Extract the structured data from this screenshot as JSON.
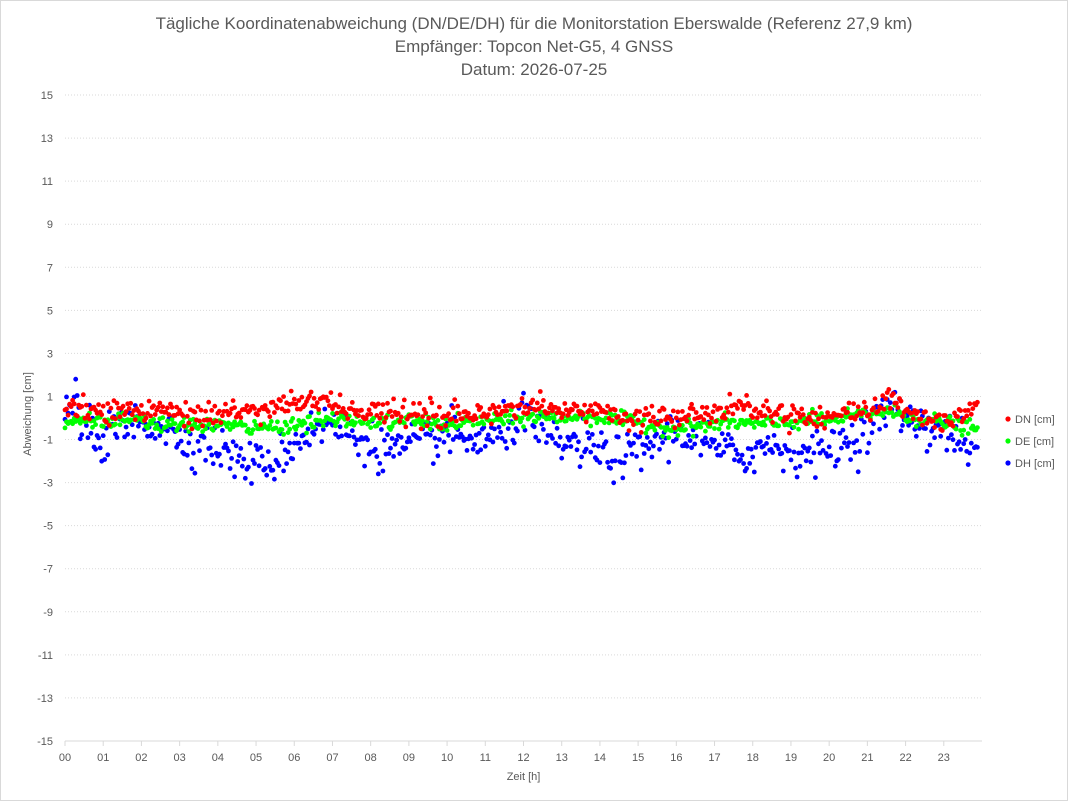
{
  "chart_data": {
    "type": "scatter",
    "title_lines": [
      "Tägliche Koordinatenabweichung (DN/DE/DH) für die Monitorstation Eberswalde (Referenz 27,9 km)",
      "Empfänger: Topcon Net-G5, 4 GNSS",
      "Datum: 2026-07-25"
    ],
    "xlabel": "Zeit [h]",
    "ylabel": "Abweichung [cm]",
    "xlim": [
      0,
      24
    ],
    "ylim": [
      -15,
      15
    ],
    "x_ticks": [
      "00",
      "01",
      "02",
      "03",
      "04",
      "05",
      "06",
      "07",
      "08",
      "09",
      "10",
      "11",
      "12",
      "13",
      "14",
      "15",
      "16",
      "17",
      "18",
      "19",
      "20",
      "21",
      "22",
      "23"
    ],
    "y_ticks": [
      15,
      13,
      11,
      9,
      7,
      5,
      3,
      1,
      -1,
      -3,
      -5,
      -7,
      -9,
      -11,
      -13,
      -15
    ],
    "grid": "horizontal-dotted",
    "legend_position": "right",
    "point_interval_hours": 0.04,
    "series": [
      {
        "name": "DN [cm]",
        "color": "#ff0000",
        "keypoints": [
          [
            0,
            0.3
          ],
          [
            0.5,
            0.5
          ],
          [
            1,
            0.2
          ],
          [
            1.5,
            0.4
          ],
          [
            2,
            0.3
          ],
          [
            2.5,
            0.4
          ],
          [
            3,
            0.2
          ],
          [
            3.5,
            0.1
          ],
          [
            4,
            0.2
          ],
          [
            4.5,
            0.3
          ],
          [
            5,
            0.4
          ],
          [
            5.5,
            0.6
          ],
          [
            6,
            0.7
          ],
          [
            6.5,
            0.9
          ],
          [
            7,
            0.6
          ],
          [
            7.5,
            0.3
          ],
          [
            8,
            0.1
          ],
          [
            8.5,
            0.2
          ],
          [
            9,
            0.3
          ],
          [
            9.5,
            0.1
          ],
          [
            10,
            0.0
          ],
          [
            10.5,
            0.1
          ],
          [
            11,
            0.2
          ],
          [
            11.5,
            0.4
          ],
          [
            12,
            0.6
          ],
          [
            12.5,
            0.5
          ],
          [
            13,
            0.4
          ],
          [
            13.5,
            0.3
          ],
          [
            14,
            0.2
          ],
          [
            14.5,
            0.1
          ],
          [
            15,
            0.0
          ],
          [
            15.5,
            0.0
          ],
          [
            16,
            0.1
          ],
          [
            16.5,
            0.3
          ],
          [
            17,
            0.4
          ],
          [
            17.5,
            0.6
          ],
          [
            18,
            0.5
          ],
          [
            18.5,
            0.3
          ],
          [
            19,
            0.2
          ],
          [
            19.5,
            0.1
          ],
          [
            20,
            0.1
          ],
          [
            20.5,
            0.2
          ],
          [
            21,
            0.4
          ],
          [
            21.5,
            0.8
          ],
          [
            22,
            0.5
          ],
          [
            22.5,
            0.0
          ],
          [
            23,
            -0.2
          ],
          [
            23.5,
            0.4
          ],
          [
            23.9,
            0.7
          ]
        ],
        "noise": 0.28
      },
      {
        "name": "DE [cm]",
        "color": "#00ff00",
        "keypoints": [
          [
            0,
            -0.3
          ],
          [
            0.5,
            0.0
          ],
          [
            1,
            -0.2
          ],
          [
            1.5,
            -0.1
          ],
          [
            2,
            -0.2
          ],
          [
            2.5,
            -0.3
          ],
          [
            3,
            -0.4
          ],
          [
            3.5,
            -0.3
          ],
          [
            4,
            -0.3
          ],
          [
            4.5,
            -0.4
          ],
          [
            5,
            -0.5
          ],
          [
            5.5,
            -0.4
          ],
          [
            6,
            -0.3
          ],
          [
            6.5,
            -0.2
          ],
          [
            7,
            -0.1
          ],
          [
            7.5,
            -0.1
          ],
          [
            8,
            -0.2
          ],
          [
            8.5,
            -0.2
          ],
          [
            9,
            -0.1
          ],
          [
            9.5,
            -0.2
          ],
          [
            10,
            -0.3
          ],
          [
            10.5,
            -0.2
          ],
          [
            11,
            -0.1
          ],
          [
            11.5,
            -0.1
          ],
          [
            12,
            0.0
          ],
          [
            12.5,
            0.1
          ],
          [
            13,
            0.0
          ],
          [
            13.5,
            0.1
          ],
          [
            14,
            0.0
          ],
          [
            14.5,
            -0.1
          ],
          [
            15,
            -0.2
          ],
          [
            15.5,
            -0.4
          ],
          [
            16,
            -0.5
          ],
          [
            16.5,
            -0.4
          ],
          [
            17,
            -0.3
          ],
          [
            17.5,
            -0.2
          ],
          [
            18,
            -0.3
          ],
          [
            18.5,
            -0.3
          ],
          [
            19,
            -0.2
          ],
          [
            19.5,
            -0.1
          ],
          [
            20,
            -0.1
          ],
          [
            20.5,
            0.0
          ],
          [
            21,
            0.2
          ],
          [
            21.5,
            0.3
          ],
          [
            22,
            0.1
          ],
          [
            22.5,
            -0.1
          ],
          [
            23,
            -0.2
          ],
          [
            23.5,
            -0.4
          ],
          [
            23.9,
            -0.6
          ]
        ],
        "noise": 0.17
      },
      {
        "name": "DH [cm]",
        "color": "#0000ff",
        "keypoints": [
          [
            0,
            0.2
          ],
          [
            0.3,
            0.9
          ],
          [
            0.5,
            -0.6
          ],
          [
            1,
            -1.0
          ],
          [
            1.5,
            -0.4
          ],
          [
            2,
            -0.2
          ],
          [
            2.5,
            -0.3
          ],
          [
            3,
            -0.9
          ],
          [
            3.5,
            -1.1
          ],
          [
            4,
            -1.4
          ],
          [
            4.5,
            -1.9
          ],
          [
            5,
            -2.2
          ],
          [
            5.5,
            -2.0
          ],
          [
            6,
            -1.2
          ],
          [
            6.5,
            -0.4
          ],
          [
            7,
            -0.3
          ],
          [
            7.5,
            -0.8
          ],
          [
            8,
            -1.2
          ],
          [
            8.5,
            -1.5
          ],
          [
            9,
            -1.4
          ],
          [
            9.5,
            -1.0
          ],
          [
            10,
            -0.8
          ],
          [
            10.5,
            -1.0
          ],
          [
            11,
            -1.1
          ],
          [
            11.5,
            -0.6
          ],
          [
            12,
            0.1
          ],
          [
            12.5,
            -0.8
          ],
          [
            13,
            -1.2
          ],
          [
            13.5,
            -1.3
          ],
          [
            14,
            -1.6
          ],
          [
            14.5,
            -1.9
          ],
          [
            15,
            -1.6
          ],
          [
            15.5,
            -1.0
          ],
          [
            16,
            -0.6
          ],
          [
            16.5,
            -0.9
          ],
          [
            17,
            -1.4
          ],
          [
            17.5,
            -1.7
          ],
          [
            18,
            -1.6
          ],
          [
            18.5,
            -1.2
          ],
          [
            19,
            -1.5
          ],
          [
            19.5,
            -1.6
          ],
          [
            20,
            -1.4
          ],
          [
            20.5,
            -1.1
          ],
          [
            21,
            -0.6
          ],
          [
            21.5,
            0.5
          ],
          [
            22,
            0.1
          ],
          [
            22.5,
            -0.3
          ],
          [
            23,
            -0.7
          ],
          [
            23.5,
            -1.0
          ],
          [
            23.9,
            -1.7
          ]
        ],
        "noise": 0.5
      }
    ]
  }
}
